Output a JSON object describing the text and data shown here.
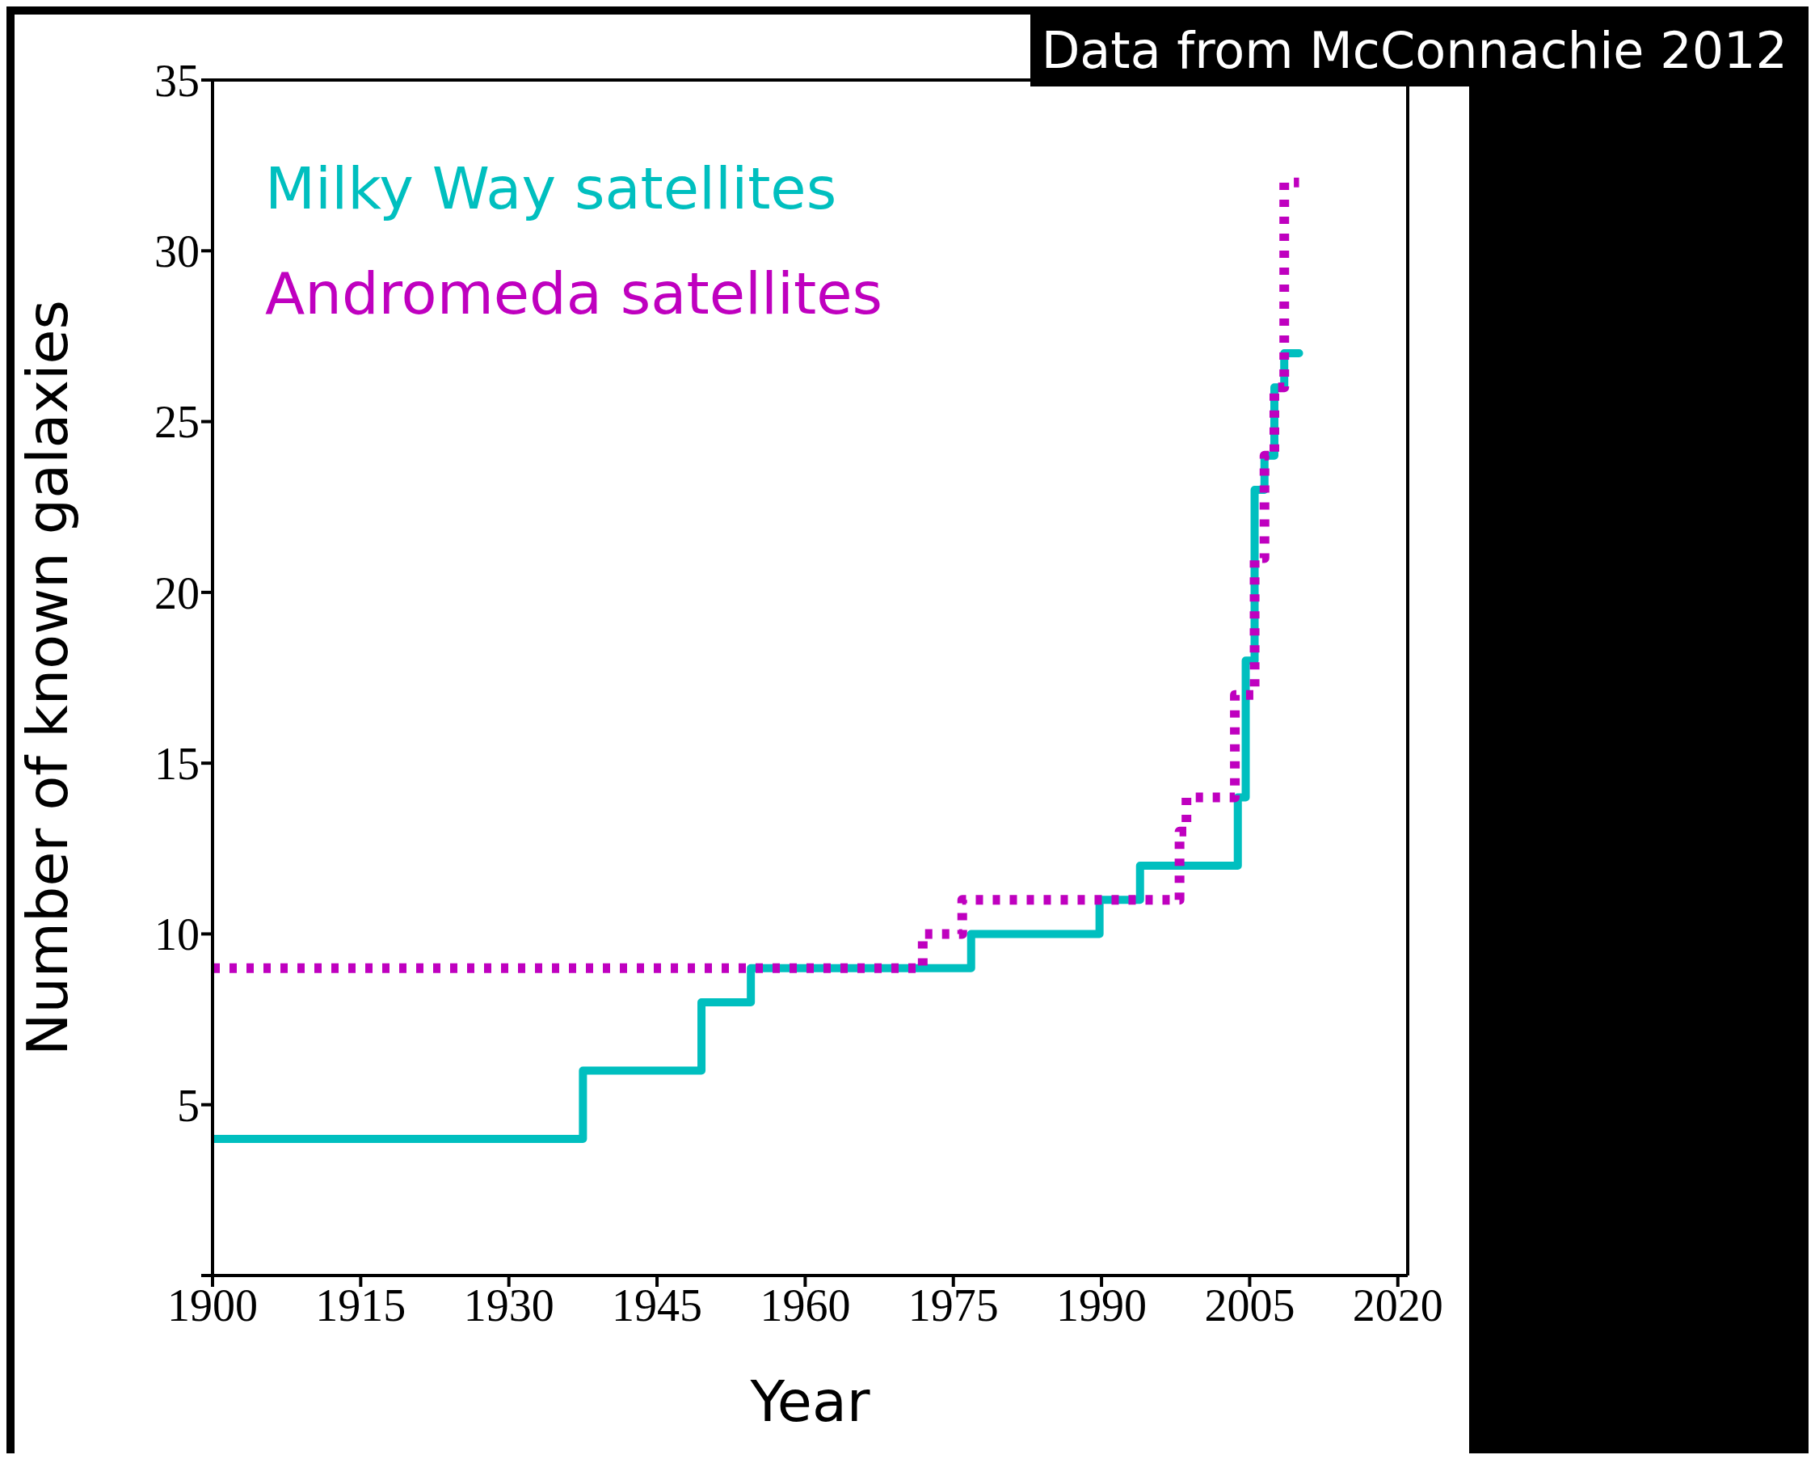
{
  "chart_data": {
    "type": "step",
    "xlabel": "Year",
    "ylabel": "Number of known galaxies",
    "annotations": [
      "Data from McConnachie 2012"
    ],
    "series": [
      {
        "name": "Milky Way satellites",
        "color": "#00bfbf",
        "line_style": "solid",
        "x": [
          1900,
          1937.5,
          1949.5,
          1954.5,
          1976.8,
          1989.8,
          1993.9,
          2003.8,
          2004.6,
          2005.5,
          2006.5,
          2007.5,
          2008.5,
          2010
        ],
        "values": [
          4,
          6,
          8,
          9,
          10,
          11,
          12,
          14,
          18,
          23,
          24,
          26,
          27,
          27
        ]
      },
      {
        "name": "Andromeda satellites",
        "color": "#bf00bf",
        "line_style": "dotted",
        "x": [
          1900,
          1971.9,
          1975.9,
          1997.9,
          1998.6,
          2003.5,
          2005.5,
          2006.5,
          2007.5,
          2008.5,
          2010
        ],
        "values": [
          9,
          10,
          11,
          13,
          14,
          17,
          21,
          24,
          26,
          32,
          32
        ]
      }
    ],
    "xlim": [
      1900,
      2021
    ],
    "xticks": [
      1900,
      1915,
      1930,
      1945,
      1960,
      1975,
      1990,
      2005,
      2020
    ],
    "ylim": [
      0,
      35
    ],
    "yticks": [
      {
        "value": 0,
        "label": null
      },
      5,
      10,
      15,
      20,
      25,
      30,
      35
    ],
    "legend": "top left",
    "marker": "none"
  }
}
